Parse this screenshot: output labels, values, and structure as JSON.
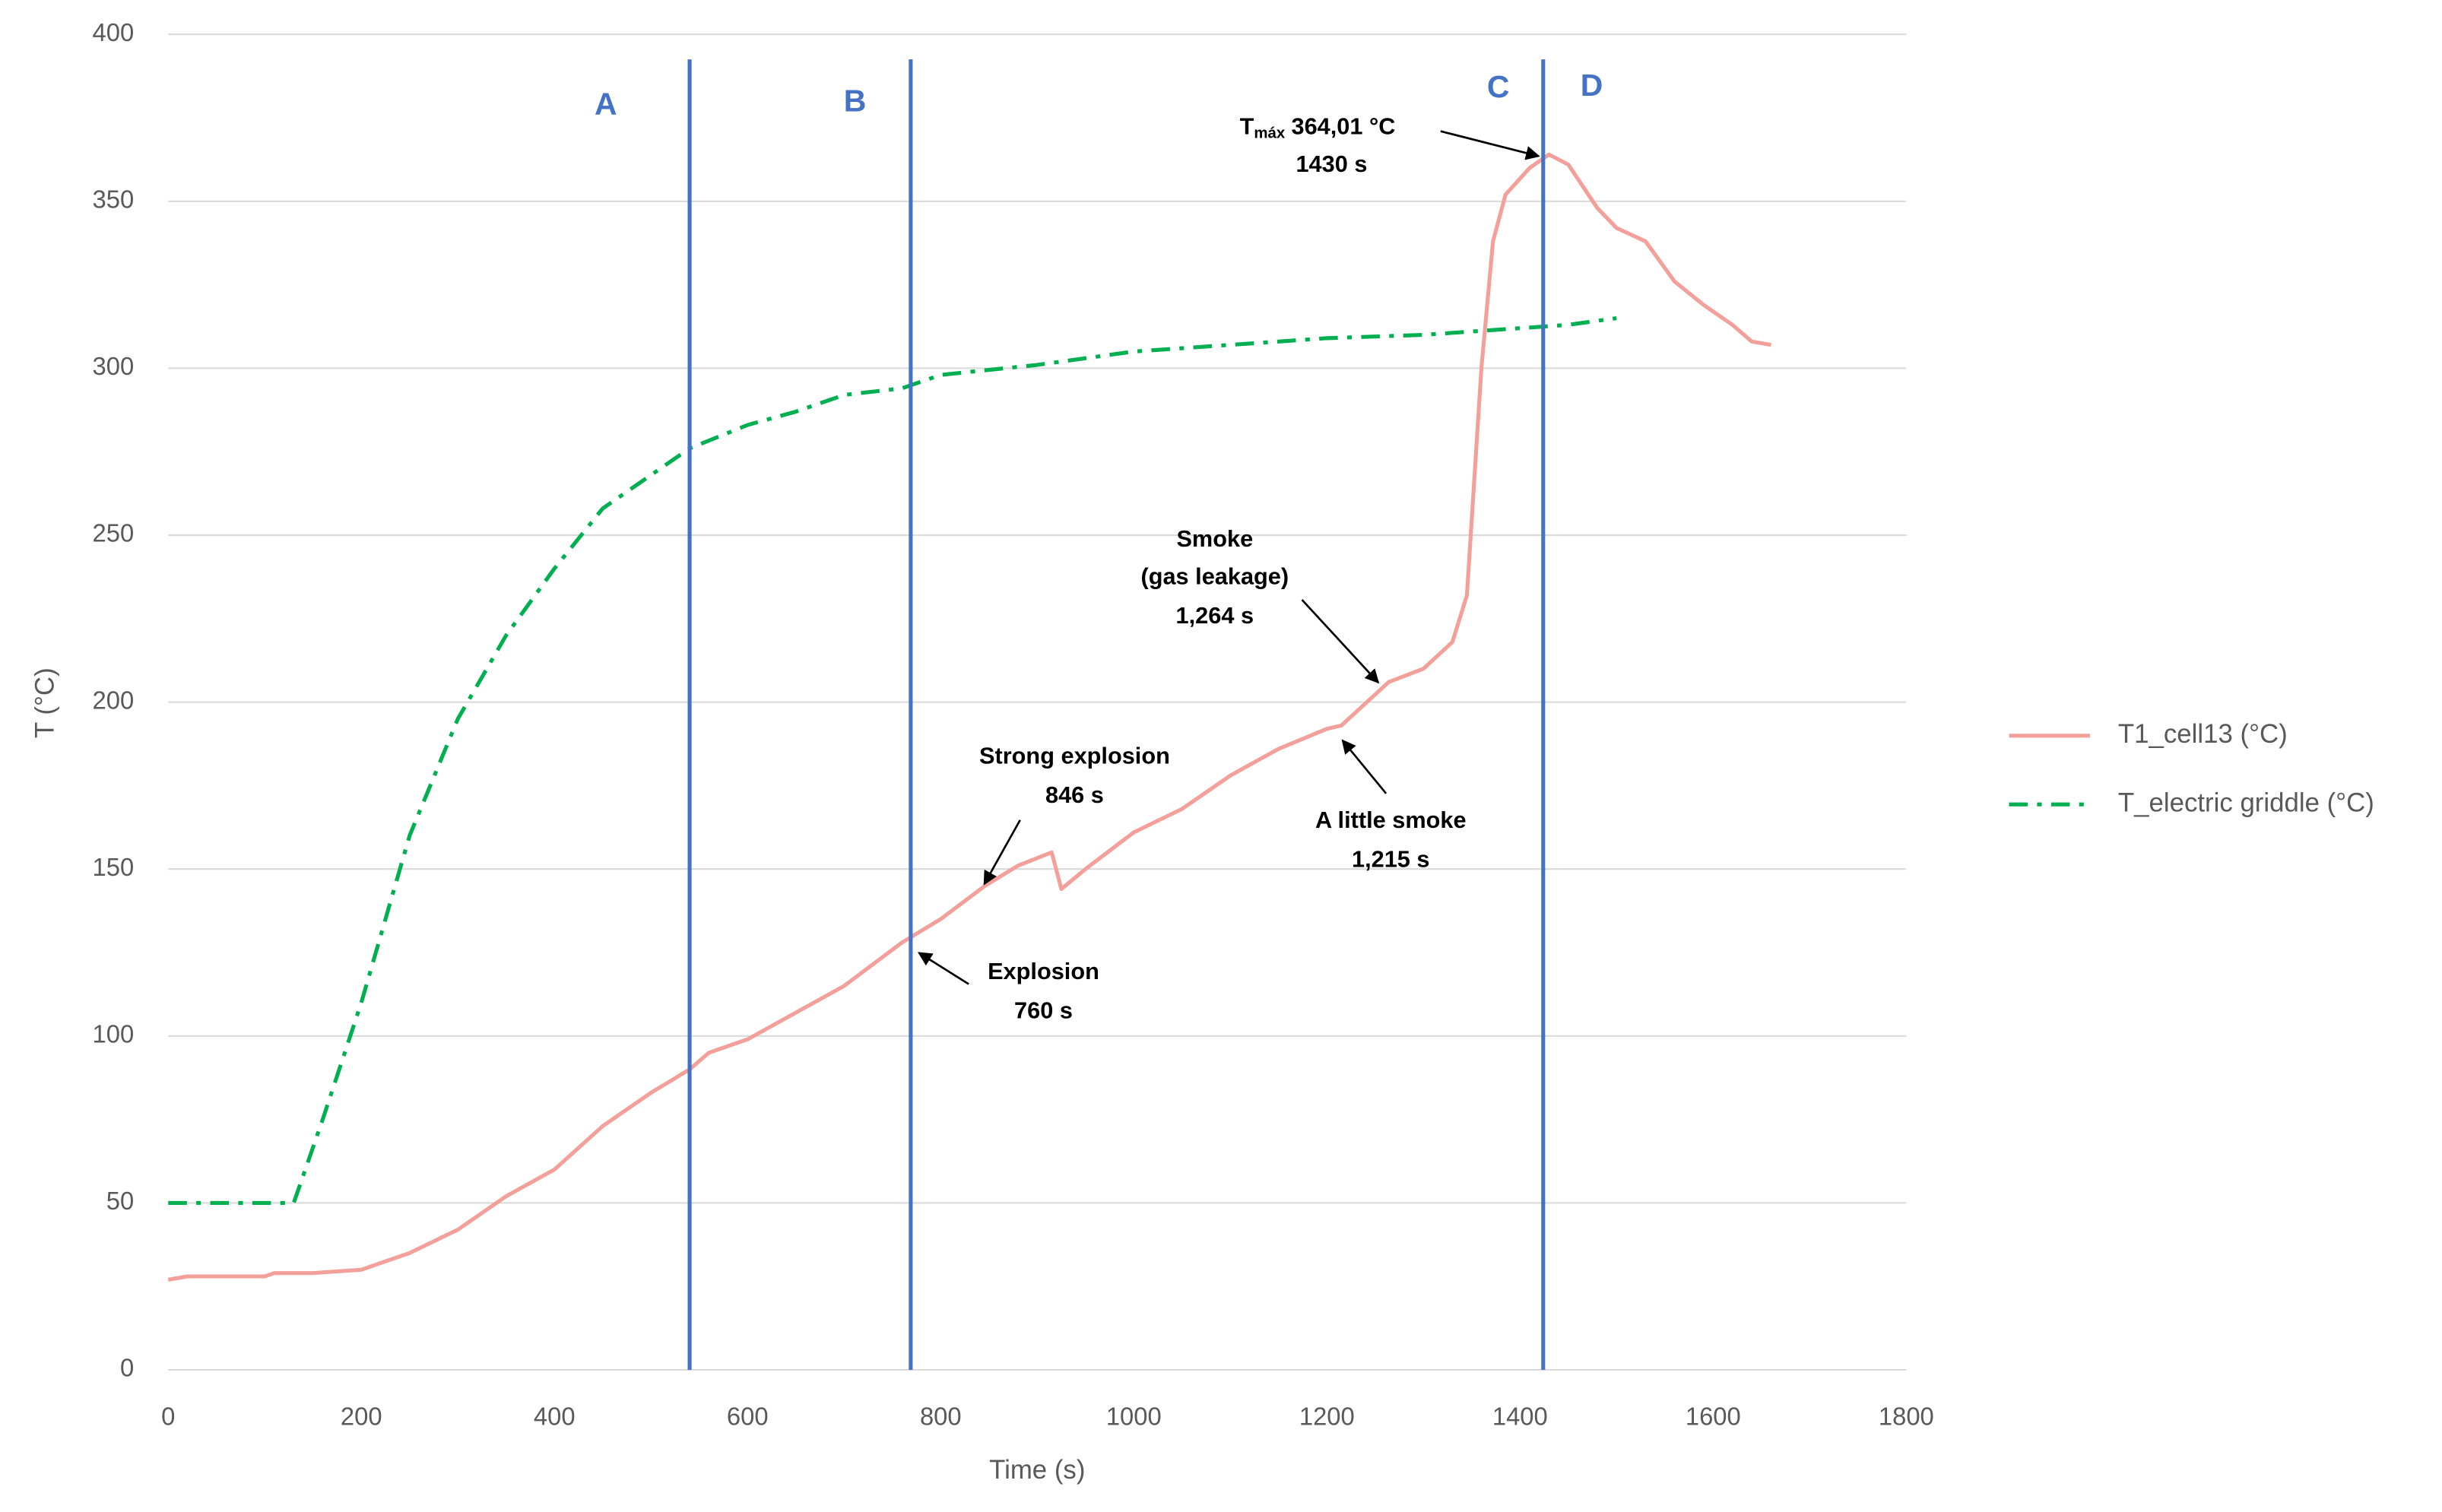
{
  "chart_data": {
    "type": "line",
    "x_label": "Time (s)",
    "y_label": "T (°C)",
    "xlim": [
      0,
      1800
    ],
    "xticks": [
      0,
      200,
      400,
      600,
      800,
      1000,
      1200,
      1400,
      1600,
      1800
    ],
    "ylim": [
      0,
      400
    ],
    "yticks": [
      0,
      50,
      100,
      150,
      200,
      250,
      300,
      350,
      400
    ],
    "grid": true,
    "legend": "right",
    "series": [
      {
        "name": "T1_cell13 (°C)",
        "color": "#f4a09a",
        "style": "solid",
        "x": [
          0,
          20,
          100,
          110,
          150,
          200,
          250,
          300,
          350,
          400,
          450,
          500,
          540,
          560,
          600,
          650,
          700,
          760,
          800,
          846,
          880,
          915,
          925,
          950,
          1000,
          1050,
          1100,
          1150,
          1200,
          1215,
          1264,
          1300,
          1330,
          1345,
          1360,
          1372,
          1385,
          1410,
          1430,
          1450,
          1480,
          1500,
          1530,
          1560,
          1590,
          1620,
          1640,
          1660
        ],
        "values": [
          27,
          28,
          28,
          29,
          29,
          30,
          35,
          42,
          52,
          60,
          73,
          83,
          90,
          95,
          99,
          107,
          115,
          128,
          135,
          145,
          151,
          155,
          144,
          150,
          161,
          168,
          178,
          186,
          192,
          193,
          206,
          210,
          218,
          232,
          300,
          338,
          352,
          360,
          364.01,
          361,
          348,
          342,
          338,
          326,
          319,
          313,
          308,
          307
        ]
      },
      {
        "name": "T_electric griddle (°C)",
        "color": "#00b050",
        "style": "dashdot",
        "x": [
          0,
          130,
          160,
          200,
          250,
          300,
          350,
          400,
          450,
          500,
          540,
          600,
          650,
          700,
          760,
          800,
          900,
          1000,
          1100,
          1200,
          1300,
          1400,
          1450,
          1500
        ],
        "values": [
          50,
          50,
          75,
          110,
          160,
          195,
          220,
          240,
          258,
          268,
          276,
          283,
          287,
          292,
          294,
          298,
          301,
          305,
          307,
          309,
          310,
          312,
          313,
          315
        ]
      }
    ],
    "vlines": {
      "color": "#4472c4",
      "x": [
        540,
        769,
        1424
      ]
    },
    "regions": [
      "A",
      "B",
      "C",
      "D"
    ],
    "annotations": [
      [
        "Strong explosion",
        "846 s"
      ],
      [
        "Explosion",
        "760 s"
      ],
      [
        "Smoke",
        "(gas leakage)",
        "1,264 s"
      ],
      [
        "A little smoke",
        "1,215 s"
      ]
    ],
    "tmax": {
      "symbol": "T",
      "subscript": "máx",
      "value": "364,01 °C",
      "time": "1430 s"
    }
  }
}
